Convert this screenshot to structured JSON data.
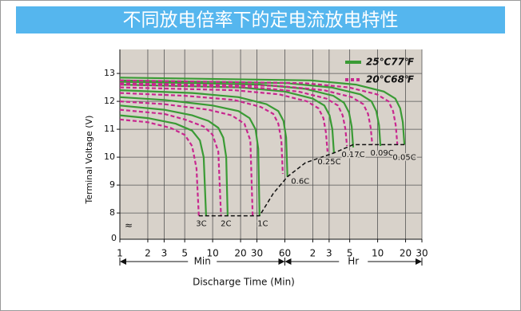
{
  "chart_data": {
    "type": "line",
    "title": "不同放电倍率下的定电流放电特性",
    "y_label": "Terminal Voltage (V)",
    "x_label": "Discharge Time (Min)",
    "x_range_labels": [
      "Min",
      "Hr"
    ],
    "y_origin_label": "0",
    "log_x": true,
    "grid": true,
    "legend": "upper right",
    "xlim": [
      1,
      1800
    ],
    "ylim": [
      7.06,
      13.86
    ],
    "xticks": [
      1,
      2,
      3,
      5,
      10,
      20,
      30,
      60,
      {
        "value": 120,
        "label": "2"
      },
      {
        "value": 180,
        "label": "3"
      },
      {
        "value": 300,
        "label": "5"
      },
      {
        "value": 600,
        "label": "10"
      },
      {
        "value": 1200,
        "label": "20"
      },
      {
        "value": 1800,
        "label": "30"
      }
    ],
    "yticks": [
      8,
      9,
      10,
      11,
      12,
      13
    ],
    "rates": [
      "3C",
      "2C",
      "1C",
      "0.6C",
      "0.25C",
      "0.17C",
      "0.09C",
      "0.05C"
    ],
    "series": [
      {
        "name": "25℃77℉",
        "color": "#3a9b35",
        "dashed": false,
        "curves": [
          {
            "x": [
              1,
              2,
              4,
              6,
              7.3,
              8,
              8.5
            ],
            "y": [
              11.5,
              11.4,
              11.2,
              10.95,
              10.6,
              10.0,
              7.9
            ]
          },
          {
            "x": [
              1,
              3,
              6,
              9,
              11.5,
              13,
              14,
              14.5
            ],
            "y": [
              11.85,
              11.7,
              11.5,
              11.3,
              11.05,
              10.7,
              10.0,
              7.9
            ]
          },
          {
            "x": [
              1,
              3,
              10,
              19,
              25,
              29,
              31,
              32
            ],
            "y": [
              12.15,
              12.05,
              11.85,
              11.65,
              11.4,
              11.0,
              10.3,
              7.9
            ]
          },
          {
            "x": [
              1,
              6,
              19,
              38,
              51,
              58,
              62,
              64
            ],
            "y": [
              12.4,
              12.3,
              12.15,
              11.9,
              11.65,
              11.3,
              10.7,
              9.3
            ]
          },
          {
            "x": [
              1,
              20,
              60,
              120,
              160,
              182,
              195,
              203
            ],
            "y": [
              12.6,
              12.5,
              12.35,
              12.1,
              11.85,
              11.5,
              11.0,
              10.15
            ]
          },
          {
            "x": [
              1,
              33,
              100,
              200,
              260,
              295,
              315,
              327
            ],
            "y": [
              12.7,
              12.6,
              12.45,
              12.2,
              11.95,
              11.6,
              11.1,
              10.35
            ]
          },
          {
            "x": [
              1,
              64,
              190,
              390,
              515,
              580,
              620,
              643
            ],
            "y": [
              12.75,
              12.65,
              12.5,
              12.25,
              12.0,
              11.65,
              11.15,
              10.4
            ]
          },
          {
            "x": [
              1,
              115,
              350,
              700,
              930,
              1050,
              1120,
              1165
            ],
            "y": [
              12.85,
              12.75,
              12.6,
              12.35,
              12.1,
              11.75,
              11.25,
              10.45
            ]
          }
        ]
      },
      {
        "name": "20℃68℉",
        "color": "#c8278f",
        "dashed": true,
        "curves": [
          {
            "x": [
              1,
              2,
              3.5,
              5,
              6,
              6.7,
              7.1
            ],
            "y": [
              11.35,
              11.25,
              11.05,
              10.8,
              10.4,
              9.6,
              7.9
            ]
          },
          {
            "x": [
              1,
              3,
              5,
              8,
              10,
              11.5,
              12.3
            ],
            "y": [
              11.7,
              11.55,
              11.35,
              11.1,
              10.8,
              10.2,
              7.9
            ]
          },
          {
            "x": [
              1,
              3,
              9,
              16,
              22,
              25.5,
              27
            ],
            "y": [
              12.0,
              11.9,
              11.7,
              11.5,
              11.2,
              10.6,
              7.9
            ]
          },
          {
            "x": [
              1,
              5,
              17,
              33,
              45,
              51,
              55,
              57
            ],
            "y": [
              12.3,
              12.2,
              12.05,
              11.8,
              11.55,
              11.2,
              10.6,
              9.4
            ]
          },
          {
            "x": [
              1,
              17,
              52,
              104,
              138,
              156,
              166,
              173
            ],
            "y": [
              12.5,
              12.4,
              12.25,
              12.0,
              11.75,
              11.4,
              10.9,
              10.2
            ]
          },
          {
            "x": [
              1,
              28,
              84,
              168,
              224,
              252,
              270,
              280
            ],
            "y": [
              12.6,
              12.5,
              12.35,
              12.1,
              11.85,
              11.5,
              11.0,
              10.4
            ]
          },
          {
            "x": [
              1,
              52,
              158,
              315,
              420,
              473,
              505,
              525
            ],
            "y": [
              12.65,
              12.55,
              12.4,
              12.15,
              11.9,
              11.55,
              11.05,
              10.45
            ]
          },
          {
            "x": [
              1,
              98,
              294,
              588,
              785,
              880,
              940,
              980
            ],
            "y": [
              12.75,
              12.65,
              12.5,
              12.25,
              12.0,
              11.65,
              11.15,
              10.45
            ]
          }
        ]
      }
    ],
    "cutoff": {
      "color": "#111111",
      "x": [
        7.1,
        32,
        45,
        64,
        100,
        203,
        327,
        1165
      ],
      "y": [
        7.9,
        7.9,
        8.7,
        9.3,
        9.8,
        10.15,
        10.45,
        10.45
      ]
    }
  }
}
